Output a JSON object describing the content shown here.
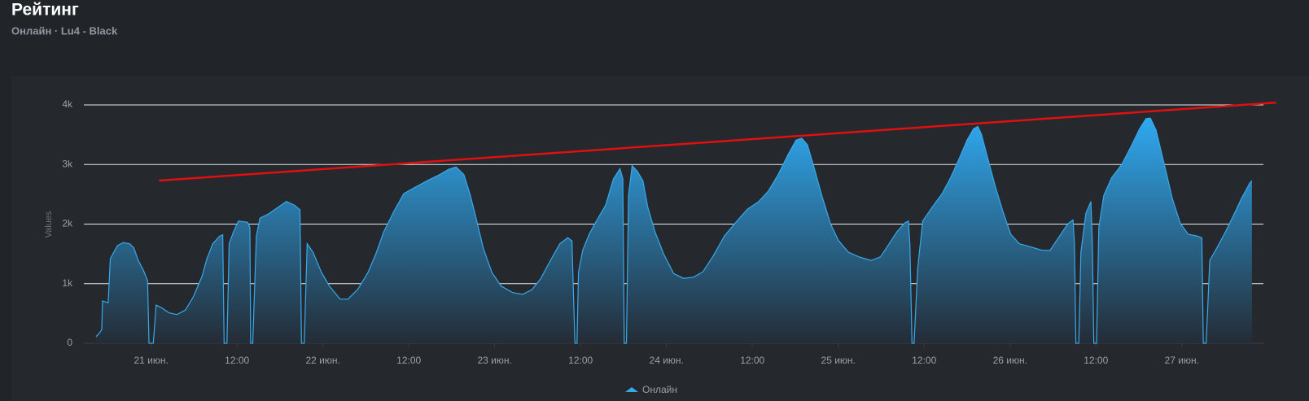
{
  "chart_data": {
    "type": "area",
    "title": "Рейтинг",
    "subtitle": "Онлайн · Lu4 - Black",
    "y_label": "Values",
    "x": [
      -7.7,
      -7.3,
      -6.9,
      -6.8,
      -6.0,
      -5.7,
      -4.7,
      -3.9,
      -3.0,
      -2.4,
      -1.8,
      -1.1,
      -0.5,
      -0.3,
      0.3,
      0.7,
      1.4,
      2.5,
      3.6,
      4.8,
      5.9,
      7.1,
      7.8,
      8.6,
      9.6,
      10.0,
      10.2,
      10.6,
      10.9,
      11.5,
      12.2,
      13.5,
      13.8,
      13.9,
      14.2,
      14.7,
      15.2,
      16.4,
      17.7,
      18.9,
      20.0,
      20.8,
      21.0,
      21.4,
      21.8,
      22.6,
      23.8,
      24.9,
      26.4,
      27.5,
      28.9,
      30.3,
      31.4,
      32.5,
      33.9,
      35.3,
      36.9,
      38.6,
      40.3,
      41.6,
      42.6,
      43.7,
      44.6,
      45.5,
      46.4,
      47.6,
      48.9,
      50.5,
      51.9,
      53.2,
      54.4,
      55.7,
      57.1,
      58.2,
      58.8,
      59.2,
      59.5,
      59.7,
      60.3,
      61.2,
      62.3,
      63.5,
      64.6,
      65.5,
      65.9,
      66.1,
      66.4,
      66.7,
      67.2,
      67.9,
      68.7,
      69.4,
      70.4,
      71.6,
      73.0,
      74.4,
      75.8,
      77.1,
      78.5,
      80.1,
      81.7,
      83.3,
      84.9,
      86.2,
      87.6,
      89.0,
      90.1,
      90.9,
      91.7,
      92.6,
      93.7,
      94.9,
      96.0,
      97.4,
      98.9,
      100.6,
      101.9,
      103.1,
      104.2,
      105.3,
      105.8,
      106.0,
      106.3,
      106.6,
      107.1,
      107.8,
      109.1,
      110.5,
      111.7,
      112.9,
      114.0,
      114.9,
      115.5,
      116.0,
      116.7,
      117.9,
      119.0,
      120.1,
      121.3,
      122.8,
      124.5,
      125.6,
      126.7,
      128.1,
      128.8,
      129.0,
      129.2,
      129.6,
      129.9,
      130.6,
      131.3,
      131.5,
      131.7,
      132.1,
      132.4,
      133.1,
      134.2,
      135.6,
      136.9,
      138.1,
      139.0,
      139.6,
      140.4,
      141.5,
      142.7,
      143.8,
      144.9,
      146.1,
      146.8,
      147.0,
      147.4,
      147.9,
      148.9,
      150.1,
      151.2,
      152.3,
      153.5,
      153.8
    ],
    "series": [
      {
        "name": "Онлайн",
        "color": "#36a9ec",
        "values": [
          110,
          160,
          230,
          710,
          680,
          1420,
          1640,
          1690,
          1670,
          1600,
          1390,
          1230,
          1050,
          0,
          0,
          640,
          600,
          510,
          480,
          560,
          780,
          1120,
          1420,
          1670,
          1800,
          1820,
          0,
          0,
          1670,
          1870,
          2050,
          2030,
          1940,
          0,
          0,
          1800,
          2100,
          2170,
          2280,
          2380,
          2320,
          2240,
          0,
          0,
          1670,
          1530,
          1190,
          960,
          740,
          740,
          910,
          1190,
          1500,
          1870,
          2210,
          2510,
          2620,
          2730,
          2830,
          2920,
          2960,
          2830,
          2480,
          2050,
          1600,
          1190,
          960,
          850,
          820,
          900,
          1080,
          1370,
          1670,
          1770,
          1720,
          0,
          0,
          1190,
          1560,
          1830,
          2070,
          2320,
          2760,
          2930,
          2760,
          0,
          0,
          2480,
          2980,
          2890,
          2730,
          2280,
          1870,
          1500,
          1170,
          1090,
          1110,
          1200,
          1460,
          1800,
          2030,
          2250,
          2380,
          2550,
          2830,
          3170,
          3410,
          3440,
          3330,
          2960,
          2480,
          2010,
          1730,
          1530,
          1450,
          1390,
          1450,
          1670,
          1870,
          2020,
          2050,
          1670,
          0,
          0,
          1260,
          2050,
          2280,
          2510,
          2780,
          3100,
          3410,
          3600,
          3640,
          3510,
          3190,
          2650,
          2210,
          1830,
          1670,
          1620,
          1560,
          1560,
          1760,
          2010,
          2070,
          1670,
          0,
          0,
          1530,
          2180,
          2380,
          1670,
          0,
          0,
          1940,
          2480,
          2780,
          3000,
          3300,
          3600,
          3770,
          3780,
          3580,
          3030,
          2420,
          2010,
          1830,
          1800,
          1770,
          0,
          0,
          1390,
          1600,
          1870,
          2140,
          2420,
          2690,
          2730
        ]
      }
    ],
    "trend": {
      "x": [
        1.1,
        157.2
      ],
      "values": [
        2730,
        4040
      ],
      "color": "#e01010"
    },
    "xlim": [
      -9.4,
      155.4
    ],
    "xticks": [
      {
        "value": 0,
        "label": "21 июн."
      },
      {
        "value": 12,
        "label": "12:00"
      },
      {
        "value": 24,
        "label": "22 июн."
      },
      {
        "value": 36,
        "label": "12:00"
      },
      {
        "value": 48,
        "label": "23 июн."
      },
      {
        "value": 60,
        "label": "12:00"
      },
      {
        "value": 72,
        "label": "24 июн."
      },
      {
        "value": 84,
        "label": "12:00"
      },
      {
        "value": 96,
        "label": "25 июн."
      },
      {
        "value": 108,
        "label": "12:00"
      },
      {
        "value": 120,
        "label": "26 июн."
      },
      {
        "value": 132,
        "label": "12:00"
      },
      {
        "value": 144,
        "label": "27 июн."
      }
    ],
    "ylim": [
      0,
      4000
    ],
    "yticks": [
      0,
      {
        "value": 1000,
        "label": "1k"
      },
      {
        "value": 2000,
        "label": "2k"
      },
      {
        "value": 3000,
        "label": "3k"
      },
      {
        "value": 4000,
        "label": "4k"
      }
    ],
    "grid": true
  }
}
